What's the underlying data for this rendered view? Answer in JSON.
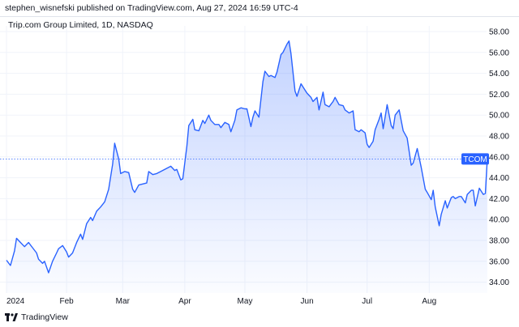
{
  "header": {
    "publisher_line": "stephen_wisnefski published on TradingView.com, Aug 27, 2024 16:59 UTC-4"
  },
  "footer": {
    "brand": "TradingView",
    "logo_icon": "tradingview-logo-icon"
  },
  "chart_data": {
    "type": "area",
    "title": "Trip.com Group Limited, 1D, NASDAQ",
    "ticker": "TCOM",
    "last_value": 45.8,
    "colors": {
      "line": "#2962ff",
      "fill": "#2962ff",
      "badge": "#2962ff"
    },
    "ylim": [
      33,
      59
    ],
    "y_ticks": [
      34.0,
      36.0,
      38.0,
      40.0,
      42.0,
      44.0,
      46.0,
      48.0,
      50.0,
      52.0,
      54.0,
      56.0,
      58.0
    ],
    "x_tick_labels": [
      {
        "label": "2024",
        "day": 0
      },
      {
        "label": "Feb",
        "day": 30
      },
      {
        "label": "Mar",
        "day": 58
      },
      {
        "label": "Apr",
        "day": 89
      },
      {
        "label": "May",
        "day": 119
      },
      {
        "label": "Jun",
        "day": 150
      },
      {
        "label": "Jul",
        "day": 180
      },
      {
        "label": "Aug",
        "day": 211
      }
    ],
    "x_range_days": [
      0,
      238
    ],
    "grid": true,
    "series": [
      {
        "values": [
          [
            0,
            36.1
          ],
          [
            2,
            35.6
          ],
          [
            4,
            37.0
          ],
          [
            5,
            38.2
          ],
          [
            7,
            37.8
          ],
          [
            9,
            37.4
          ],
          [
            11,
            37.8
          ],
          [
            13,
            37.3
          ],
          [
            15,
            36.8
          ],
          [
            16,
            36.2
          ],
          [
            18,
            35.8
          ],
          [
            19,
            36.0
          ],
          [
            21,
            34.9
          ],
          [
            23,
            36.0
          ],
          [
            25,
            36.8
          ],
          [
            26,
            37.2
          ],
          [
            28,
            37.5
          ],
          [
            30,
            36.9
          ],
          [
            31,
            36.4
          ],
          [
            33,
            36.8
          ],
          [
            35,
            37.8
          ],
          [
            37,
            38.6
          ],
          [
            38,
            38.1
          ],
          [
            40,
            39.6
          ],
          [
            42,
            40.2
          ],
          [
            43,
            39.9
          ],
          [
            45,
            40.8
          ],
          [
            47,
            41.2
          ],
          [
            49,
            41.7
          ],
          [
            51,
            42.9
          ],
          [
            53,
            45.3
          ],
          [
            54,
            47.3
          ],
          [
            56,
            45.8
          ],
          [
            57,
            44.4
          ],
          [
            59,
            44.6
          ],
          [
            61,
            44.5
          ],
          [
            63,
            42.9
          ],
          [
            64,
            42.6
          ],
          [
            66,
            43.3
          ],
          [
            68,
            43.4
          ],
          [
            70,
            43.5
          ],
          [
            71,
            44.6
          ],
          [
            73,
            44.3
          ],
          [
            75,
            44.4
          ],
          [
            77,
            44.6
          ],
          [
            79,
            44.8
          ],
          [
            80,
            44.9
          ],
          [
            82,
            45.1
          ],
          [
            84,
            44.7
          ],
          [
            85,
            44.8
          ],
          [
            87,
            43.8
          ],
          [
            88,
            43.9
          ],
          [
            90,
            47.0
          ],
          [
            91,
            49.0
          ],
          [
            93,
            49.6
          ],
          [
            94,
            48.6
          ],
          [
            96,
            48.5
          ],
          [
            98,
            49.5
          ],
          [
            99,
            49.2
          ],
          [
            101,
            50.0
          ],
          [
            102,
            49.5
          ],
          [
            104,
            49.1
          ],
          [
            106,
            49.1
          ],
          [
            107,
            48.8
          ],
          [
            109,
            49.3
          ],
          [
            111,
            49.1
          ],
          [
            112,
            48.4
          ],
          [
            114,
            49.5
          ],
          [
            115,
            50.5
          ],
          [
            117,
            50.7
          ],
          [
            119,
            50.6
          ],
          [
            120,
            50.6
          ],
          [
            122,
            48.9
          ],
          [
            123,
            49.8
          ],
          [
            124,
            50.4
          ],
          [
            126,
            49.8
          ],
          [
            128,
            53.2
          ],
          [
            129,
            54.2
          ],
          [
            131,
            53.7
          ],
          [
            132,
            53.8
          ],
          [
            134,
            53.6
          ],
          [
            135,
            54.1
          ],
          [
            137,
            55.8
          ],
          [
            138,
            56.0
          ],
          [
            140,
            56.8
          ],
          [
            141,
            57.1
          ],
          [
            142,
            55.9
          ],
          [
            144,
            52.3
          ],
          [
            145,
            51.8
          ],
          [
            147,
            53.0
          ],
          [
            149,
            52.4
          ],
          [
            150,
            52.1
          ],
          [
            152,
            51.7
          ],
          [
            153,
            51.3
          ],
          [
            155,
            51.7
          ],
          [
            156,
            50.5
          ],
          [
            158,
            52.2
          ],
          [
            159,
            51.0
          ],
          [
            161,
            50.8
          ],
          [
            163,
            51.3
          ],
          [
            164,
            51.7
          ],
          [
            166,
            51.0
          ],
          [
            168,
            50.9
          ],
          [
            169,
            50.5
          ],
          [
            171,
            50.2
          ],
          [
            173,
            50.4
          ],
          [
            174,
            48.6
          ],
          [
            176,
            48.4
          ],
          [
            177,
            48.6
          ],
          [
            179,
            48.3
          ],
          [
            180,
            47.2
          ],
          [
            181,
            46.9
          ],
          [
            183,
            47.5
          ],
          [
            184,
            48.6
          ],
          [
            186,
            49.6
          ],
          [
            187,
            50.2
          ],
          [
            188,
            48.7
          ],
          [
            189,
            49.8
          ],
          [
            190,
            51.0
          ],
          [
            192,
            49.0
          ],
          [
            193,
            48.7
          ],
          [
            194,
            50.0
          ],
          [
            196,
            50.5
          ],
          [
            198,
            48.5
          ],
          [
            200,
            47.8
          ],
          [
            202,
            45.2
          ],
          [
            203,
            45.4
          ],
          [
            205,
            46.8
          ],
          [
            207,
            45.0
          ],
          [
            209,
            42.9
          ],
          [
            210,
            42.6
          ],
          [
            212,
            41.9
          ],
          [
            213,
            42.8
          ],
          [
            214,
            41.2
          ],
          [
            216,
            39.4
          ],
          [
            217,
            40.5
          ],
          [
            219,
            41.8
          ],
          [
            220,
            41.1
          ],
          [
            222,
            42.1
          ],
          [
            223,
            42.2
          ],
          [
            224,
            42.0
          ],
          [
            226,
            42.2
          ],
          [
            227,
            42.2
          ],
          [
            229,
            41.6
          ],
          [
            230,
            42.4
          ],
          [
            232,
            42.8
          ],
          [
            233,
            42.8
          ],
          [
            234,
            41.3
          ],
          [
            236,
            43.0
          ],
          [
            237,
            42.7
          ],
          [
            238,
            42.4
          ],
          [
            239,
            42.5
          ],
          [
            240,
            45.8
          ]
        ]
      }
    ]
  }
}
